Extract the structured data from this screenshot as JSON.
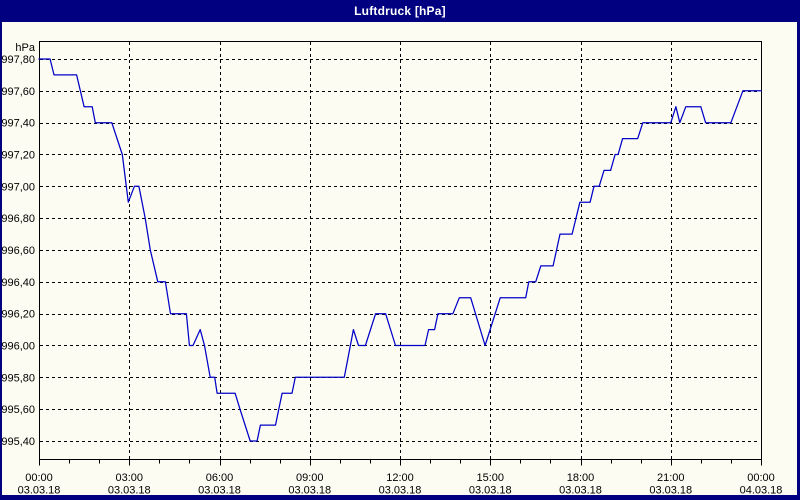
{
  "window": {
    "title": "Luftdruck [hPa]"
  },
  "colors": {
    "frame": "#000080",
    "title_text": "#FFFFFF",
    "surface": "#FCFCF2",
    "grid": "#000000",
    "axis": "#000000",
    "label_text": "#000000",
    "line": "#0000C8"
  },
  "chart_data": {
    "type": "line",
    "title": "Luftdruck [hPa]",
    "unit_label": "hPa",
    "grid": true,
    "xlim_hours": [
      0,
      24
    ],
    "ylim": [
      995.28,
      997.91
    ],
    "x_minor_tick_interval_hours": 1,
    "y_tick_values": [
      997.8,
      997.6,
      997.4,
      997.2,
      997.0,
      996.8,
      996.6,
      996.4,
      996.2,
      996.0,
      995.8,
      995.6,
      995.4
    ],
    "y_tick_labels": [
      "997,80",
      "997,60",
      "997,40",
      "997,20",
      "997,00",
      "996,80",
      "996,60",
      "996,40",
      "996,20",
      "996,00",
      "995,80",
      "995,60",
      "995,40"
    ],
    "x_ticks": [
      {
        "hours": 0,
        "time": "00:00",
        "date": "03.03.18"
      },
      {
        "hours": 3,
        "time": "03:00",
        "date": "03.03.18"
      },
      {
        "hours": 6,
        "time": "06:00",
        "date": "03.03.18"
      },
      {
        "hours": 9,
        "time": "09:00",
        "date": "03.03.18"
      },
      {
        "hours": 12,
        "time": "12:00",
        "date": "03.03.18"
      },
      {
        "hours": 15,
        "time": "15:00",
        "date": "03.03.18"
      },
      {
        "hours": 18,
        "time": "18:00",
        "date": "03.03.18"
      },
      {
        "hours": 21,
        "time": "21:00",
        "date": "03.03.18"
      },
      {
        "hours": 24,
        "time": "00:00",
        "date": "04.03.18"
      }
    ],
    "series": [
      {
        "name": "Luftdruck",
        "points": [
          [
            0,
            997.8
          ],
          [
            0.37,
            997.8
          ],
          [
            0.5,
            997.7
          ],
          [
            1.25,
            997.7
          ],
          [
            1.5,
            997.5
          ],
          [
            1.77,
            997.5
          ],
          [
            1.87,
            997.4
          ],
          [
            2.42,
            997.4
          ],
          [
            2.77,
            997.2
          ],
          [
            2.97,
            996.9
          ],
          [
            3.17,
            997.0
          ],
          [
            3.32,
            997.0
          ],
          [
            3.53,
            996.8
          ],
          [
            3.7,
            996.6
          ],
          [
            3.95,
            996.4
          ],
          [
            4.2,
            996.4
          ],
          [
            4.37,
            996.2
          ],
          [
            4.9,
            996.2
          ],
          [
            5.0,
            996.0
          ],
          [
            5.12,
            996.0
          ],
          [
            5.36,
            996.1
          ],
          [
            5.5,
            996.0
          ],
          [
            5.69,
            995.8
          ],
          [
            5.84,
            995.8
          ],
          [
            5.92,
            995.7
          ],
          [
            6.52,
            995.7
          ],
          [
            6.68,
            995.6
          ],
          [
            7.02,
            995.4
          ],
          [
            7.25,
            995.4
          ],
          [
            7.36,
            995.5
          ],
          [
            7.86,
            995.5
          ],
          [
            8.08,
            995.7
          ],
          [
            8.41,
            995.7
          ],
          [
            8.52,
            995.8
          ],
          [
            10.15,
            995.8
          ],
          [
            10.45,
            996.1
          ],
          [
            10.62,
            996.0
          ],
          [
            10.85,
            996.0
          ],
          [
            11.19,
            996.2
          ],
          [
            11.52,
            996.2
          ],
          [
            11.85,
            996.0
          ],
          [
            12.83,
            996.0
          ],
          [
            12.95,
            996.1
          ],
          [
            13.15,
            996.1
          ],
          [
            13.26,
            996.2
          ],
          [
            13.76,
            996.2
          ],
          [
            13.97,
            996.3
          ],
          [
            14.35,
            996.3
          ],
          [
            14.83,
            996.0
          ],
          [
            15.33,
            996.3
          ],
          [
            16.18,
            996.3
          ],
          [
            16.28,
            996.4
          ],
          [
            16.51,
            996.4
          ],
          [
            16.68,
            996.5
          ],
          [
            17.09,
            996.5
          ],
          [
            17.32,
            996.7
          ],
          [
            17.72,
            996.7
          ],
          [
            17.98,
            996.9
          ],
          [
            18.32,
            996.9
          ],
          [
            18.45,
            997.0
          ],
          [
            18.62,
            997.0
          ],
          [
            18.78,
            997.1
          ],
          [
            19.0,
            997.1
          ],
          [
            19.15,
            997.2
          ],
          [
            19.25,
            997.2
          ],
          [
            19.4,
            997.3
          ],
          [
            19.9,
            997.3
          ],
          [
            20.07,
            997.4
          ],
          [
            21.0,
            997.4
          ],
          [
            21.17,
            997.5
          ],
          [
            21.3,
            997.4
          ],
          [
            21.5,
            997.5
          ],
          [
            22.0,
            997.5
          ],
          [
            22.16,
            997.4
          ],
          [
            23.0,
            997.4
          ],
          [
            23.4,
            997.6
          ],
          [
            24.0,
            997.6
          ]
        ]
      }
    ]
  }
}
